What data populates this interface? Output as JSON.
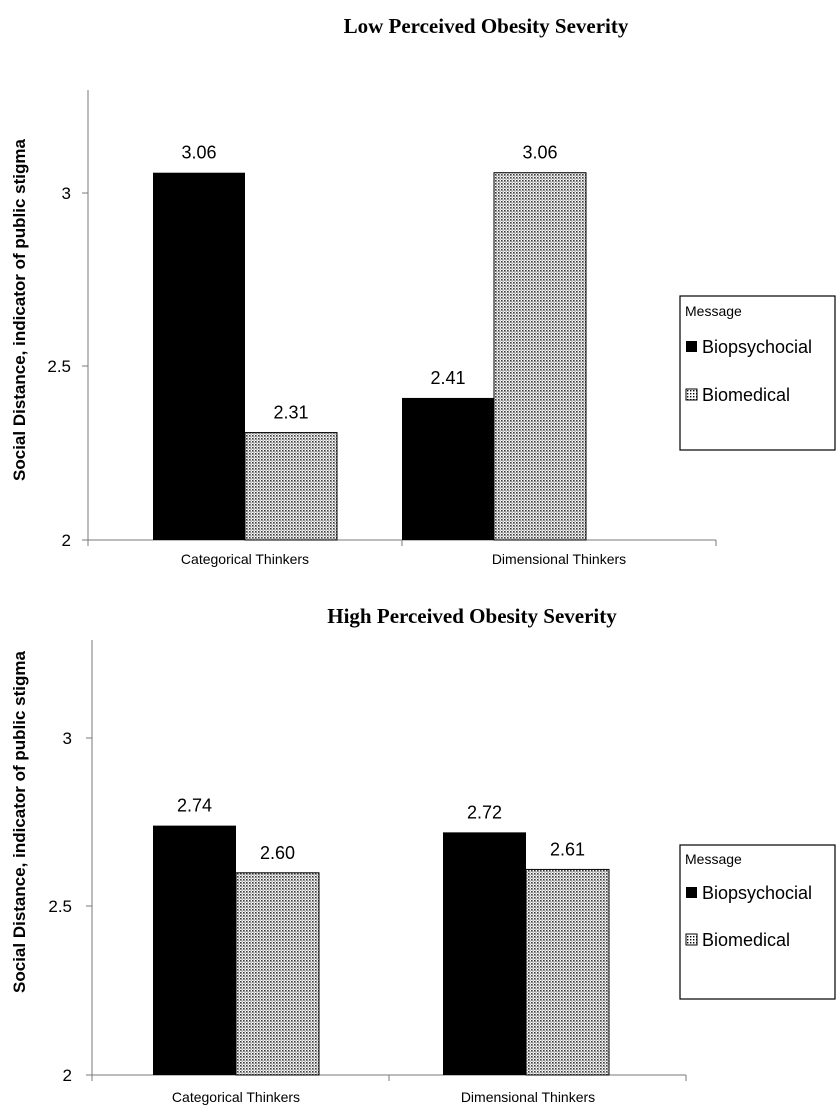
{
  "chart_data": [
    {
      "type": "bar",
      "title": "Low Perceived Obesity Severity",
      "ylabel": "Social Distance, indicator of public stigma",
      "xlabel": "",
      "categories": [
        "Categorical Thinkers",
        "Dimensional Thinkers"
      ],
      "series": [
        {
          "name": "Biopsychocial",
          "values": [
            3.06,
            2.41
          ],
          "labels": [
            "3.06",
            "2.41"
          ],
          "color": "#000000",
          "pattern": "solid"
        },
        {
          "name": "Biomedical",
          "values": [
            2.31,
            3.06
          ],
          "labels": [
            "2.31",
            "3.06"
          ],
          "color": "#bdbdbd",
          "pattern": "dotted"
        }
      ],
      "ylim": [
        2,
        3.3
      ],
      "yticks": [
        2,
        2.5,
        3
      ],
      "ytick_labels": [
        "2",
        "2.5",
        "3"
      ],
      "grid": false,
      "legend": {
        "title": "Message",
        "position": "right"
      }
    },
    {
      "type": "bar",
      "title": "High Perceived Obesity Severity",
      "ylabel": "Social Distance, indicator of public stigma",
      "xlabel": "",
      "categories": [
        "Categorical Thinkers",
        "Dimensional Thinkers"
      ],
      "series": [
        {
          "name": "Biopsychocial",
          "values": [
            2.74,
            2.72
          ],
          "labels": [
            "2.74",
            "2.72"
          ],
          "color": "#000000",
          "pattern": "solid"
        },
        {
          "name": "Biomedical",
          "values": [
            2.6,
            2.61
          ],
          "labels": [
            "2.60",
            "2.61"
          ],
          "color": "#bdbdbd",
          "pattern": "dotted"
        }
      ],
      "ylim": [
        2,
        3.3
      ],
      "yticks": [
        2,
        2.5,
        3
      ],
      "ytick_labels": [
        "2",
        "2.5",
        "3"
      ],
      "grid": false,
      "legend": {
        "title": "Message",
        "position": "right"
      }
    }
  ]
}
